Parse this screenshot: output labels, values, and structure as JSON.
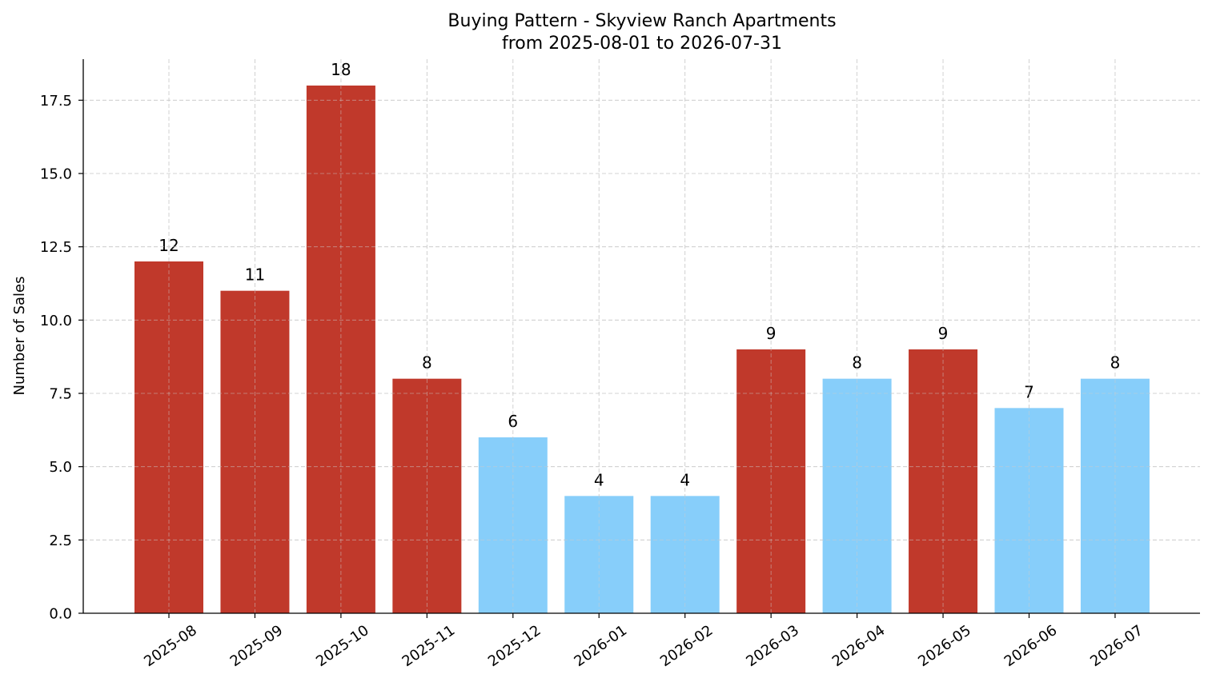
{
  "chart_data": {
    "type": "bar",
    "title": "Buying Pattern - Skyview Ranch Apartments",
    "subtitle": "from 2025-08-01 to 2026-07-31",
    "xlabel": "",
    "ylabel": "Number of Sales",
    "ylim": [
      0,
      18.9
    ],
    "yticks": [
      "0.0",
      "2.5",
      "5.0",
      "7.5",
      "10.0",
      "12.5",
      "15.0",
      "17.5"
    ],
    "categories": [
      "2025-08",
      "2025-09",
      "2025-10",
      "2025-11",
      "2025-12",
      "2026-01",
      "2026-02",
      "2026-03",
      "2026-04",
      "2026-05",
      "2026-06",
      "2026-07"
    ],
    "values": [
      12,
      11,
      18,
      8,
      6,
      4,
      4,
      9,
      8,
      9,
      7,
      8
    ],
    "bar_colors": [
      "#c0392b",
      "#c0392b",
      "#c0392b",
      "#c0392b",
      "#87cefa",
      "#87cefa",
      "#87cefa",
      "#c0392b",
      "#87cefa",
      "#c0392b",
      "#87cefa",
      "#87cefa"
    ],
    "grid": true,
    "legend": "none"
  }
}
